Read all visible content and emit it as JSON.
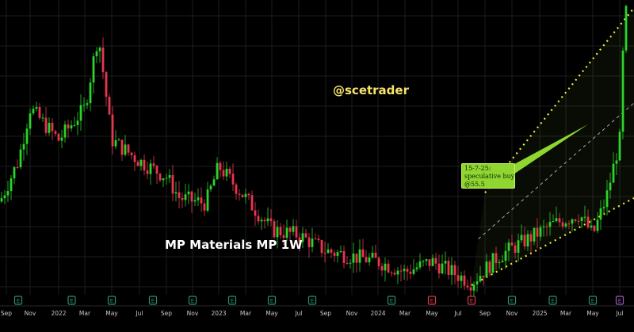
{
  "watermark": "@scetrader",
  "title": "MP Materials MP 1W",
  "annotation": {
    "lines": [
      "15-7-25:",
      "speculative buy",
      "@55.5"
    ]
  },
  "colors": {
    "background": "#000000",
    "up_candle": "#2bd32b",
    "down_candle": "#e8364f",
    "channel_line": "#f2ec3a",
    "mid_line": "#cccccc",
    "callout": "#8fd630",
    "earnings_marker": "#2e8c70",
    "earnings_marker_red": "#d53a4a",
    "dividend_marker": "#9b59b6"
  },
  "chart_data": {
    "type": "candlestick",
    "interval": "1W",
    "symbol": "MP",
    "x_axis_labels": [
      "Sep",
      "Nov",
      "2022",
      "Mar",
      "May",
      "Jul",
      "Sep",
      "Nov",
      "2023",
      "Mar",
      "May",
      "Jul",
      "Sep",
      "Nov",
      "2024",
      "Mar",
      "May",
      "Jul",
      "Sep",
      "Nov",
      "2025",
      "Mar",
      "May",
      "Jul"
    ],
    "earnings_markers": [
      {
        "date": "2021-10",
        "kind": "E",
        "color": "green"
      },
      {
        "date": "2022-02",
        "kind": "E",
        "color": "green"
      },
      {
        "date": "2022-05",
        "kind": "E",
        "color": "green"
      },
      {
        "date": "2022-08",
        "kind": "E",
        "color": "green"
      },
      {
        "date": "2022-11",
        "kind": "E",
        "color": "green"
      },
      {
        "date": "2023-02",
        "kind": "E",
        "color": "green"
      },
      {
        "date": "2023-05",
        "kind": "E",
        "color": "green"
      },
      {
        "date": "2023-08",
        "kind": "E",
        "color": "green"
      },
      {
        "date": "2024-02",
        "kind": "E",
        "color": "green"
      },
      {
        "date": "2024-05",
        "kind": "E",
        "color": "red"
      },
      {
        "date": "2024-08",
        "kind": "E",
        "color": "red"
      },
      {
        "date": "2024-11",
        "kind": "E",
        "color": "green"
      },
      {
        "date": "2025-02",
        "kind": "E",
        "color": "green"
      },
      {
        "date": "2025-05",
        "kind": "E",
        "color": "green"
      },
      {
        "date": "2025-07",
        "kind": "E",
        "color": "purple"
      }
    ],
    "channel": {
      "upper_start": {
        "date": "2024-09",
        "price": 28
      },
      "upper_end": {
        "date": "2025-07",
        "price": 63
      },
      "lower_start": {
        "date": "2024-08",
        "price": 10.5
      },
      "lower_end": {
        "date": "2025-07",
        "price": 27
      }
    },
    "anchor_points": [
      {
        "date": "2021-08",
        "price": 24
      },
      {
        "date": "2021-10",
        "price": 34
      },
      {
        "date": "2021-11",
        "price": 44
      },
      {
        "date": "2022-01",
        "price": 38
      },
      {
        "date": "2022-03",
        "price": 44
      },
      {
        "date": "2022-04",
        "price": 58
      },
      {
        "date": "2022-05",
        "price": 38
      },
      {
        "date": "2022-07",
        "price": 34
      },
      {
        "date": "2022-09",
        "price": 31
      },
      {
        "date": "2022-10",
        "price": 27
      },
      {
        "date": "2022-12",
        "price": 26
      },
      {
        "date": "2023-01",
        "price": 33
      },
      {
        "date": "2023-03",
        "price": 27
      },
      {
        "date": "2023-05",
        "price": 21
      },
      {
        "date": "2023-07",
        "price": 20
      },
      {
        "date": "2023-09",
        "price": 17
      },
      {
        "date": "2023-11",
        "price": 16
      },
      {
        "date": "2024-01",
        "price": 15
      },
      {
        "date": "2024-03",
        "price": 13
      },
      {
        "date": "2024-05",
        "price": 15
      },
      {
        "date": "2024-08",
        "price": 11
      },
      {
        "date": "2024-10",
        "price": 16
      },
      {
        "date": "2024-12",
        "price": 19
      },
      {
        "date": "2025-02",
        "price": 22
      },
      {
        "date": "2025-04",
        "price": 24
      },
      {
        "date": "2025-05",
        "price": 20
      },
      {
        "date": "2025-06",
        "price": 27
      },
      {
        "date": "2025-07",
        "price": 38
      },
      {
        "date": "2025-07",
        "price": 62
      }
    ]
  }
}
